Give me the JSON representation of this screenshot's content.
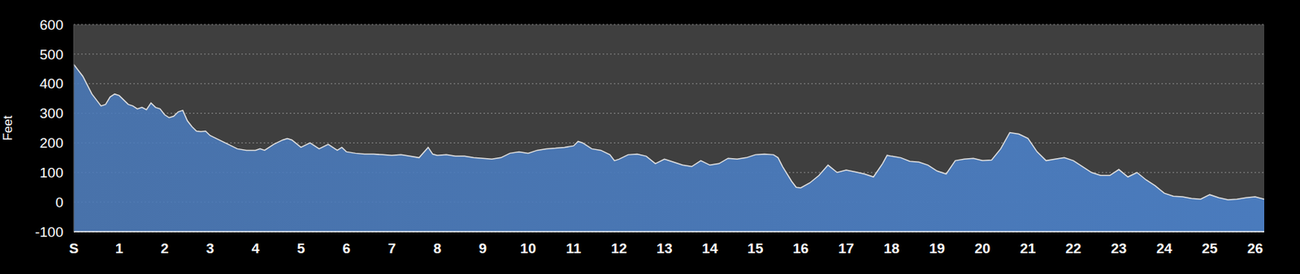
{
  "chart_data": {
    "type": "area",
    "y_label": "Feet",
    "color": "#4a7bbd",
    "grid": true,
    "xlim": [
      0,
      26.2
    ],
    "ylim": [
      -100,
      600
    ],
    "xticks": [
      {
        "value": 0,
        "label": "S"
      },
      1,
      2,
      3,
      4,
      5,
      6,
      7,
      8,
      9,
      10,
      11,
      12,
      13,
      14,
      15,
      16,
      17,
      18,
      19,
      20,
      21,
      22,
      23,
      24,
      25,
      26
    ],
    "yticks": [
      -100,
      0,
      100,
      200,
      300,
      400,
      500,
      600
    ],
    "x": [
      0,
      0.1,
      0.2,
      0.3,
      0.4,
      0.5,
      0.6,
      0.7,
      0.8,
      0.9,
      1.0,
      1.1,
      1.2,
      1.3,
      1.4,
      1.5,
      1.6,
      1.7,
      1.8,
      1.9,
      2.0,
      2.1,
      2.2,
      2.3,
      2.4,
      2.5,
      2.6,
      2.7,
      2.8,
      2.9,
      3.0,
      3.2,
      3.4,
      3.6,
      3.8,
      4.0,
      4.1,
      4.2,
      4.4,
      4.6,
      4.7,
      4.8,
      5.0,
      5.2,
      5.4,
      5.6,
      5.8,
      5.9,
      6.0,
      6.2,
      6.4,
      6.6,
      6.8,
      7.0,
      7.2,
      7.4,
      7.6,
      7.8,
      7.9,
      8.0,
      8.2,
      8.4,
      8.6,
      8.8,
      9.0,
      9.2,
      9.4,
      9.6,
      9.8,
      10.0,
      10.2,
      10.4,
      10.6,
      10.8,
      11.0,
      11.1,
      11.2,
      11.4,
      11.6,
      11.8,
      11.9,
      12.0,
      12.2,
      12.4,
      12.6,
      12.8,
      13.0,
      13.2,
      13.4,
      13.6,
      13.8,
      14.0,
      14.2,
      14.4,
      14.6,
      14.8,
      15.0,
      15.2,
      15.4,
      15.5,
      15.6,
      15.8,
      15.9,
      16.0,
      16.2,
      16.4,
      16.6,
      16.8,
      17.0,
      17.2,
      17.4,
      17.6,
      17.8,
      17.9,
      18.0,
      18.2,
      18.4,
      18.6,
      18.8,
      19.0,
      19.2,
      19.4,
      19.6,
      19.8,
      20.0,
      20.2,
      20.4,
      20.6,
      20.8,
      21.0,
      21.2,
      21.4,
      21.6,
      21.8,
      22.0,
      22.2,
      22.4,
      22.6,
      22.8,
      23.0,
      23.2,
      23.4,
      23.6,
      23.8,
      24.0,
      24.2,
      24.4,
      24.6,
      24.8,
      25.0,
      25.2,
      25.4,
      25.6,
      25.8,
      26.0,
      26.2
    ],
    "values": [
      465,
      445,
      425,
      395,
      365,
      345,
      325,
      330,
      355,
      365,
      360,
      345,
      330,
      325,
      315,
      320,
      312,
      335,
      320,
      315,
      295,
      285,
      290,
      305,
      310,
      275,
      255,
      240,
      238,
      240,
      225,
      210,
      195,
      180,
      175,
      175,
      180,
      175,
      195,
      210,
      215,
      210,
      185,
      200,
      180,
      195,
      175,
      185,
      170,
      165,
      162,
      162,
      160,
      158,
      160,
      155,
      150,
      185,
      162,
      158,
      160,
      155,
      155,
      150,
      148,
      145,
      150,
      165,
      170,
      165,
      175,
      180,
      182,
      185,
      190,
      205,
      200,
      180,
      175,
      160,
      140,
      145,
      160,
      162,
      155,
      130,
      145,
      135,
      125,
      120,
      140,
      125,
      130,
      148,
      145,
      150,
      160,
      162,
      160,
      150,
      120,
      70,
      50,
      48,
      65,
      90,
      125,
      100,
      108,
      102,
      95,
      85,
      130,
      158,
      155,
      150,
      138,
      135,
      125,
      105,
      95,
      140,
      145,
      148,
      140,
      142,
      180,
      235,
      230,
      215,
      170,
      140,
      145,
      150,
      140,
      120,
      100,
      90,
      90,
      110,
      85,
      100,
      75,
      55,
      30,
      20,
      18,
      12,
      10,
      25,
      15,
      8,
      10,
      15,
      18,
      10
    ]
  }
}
